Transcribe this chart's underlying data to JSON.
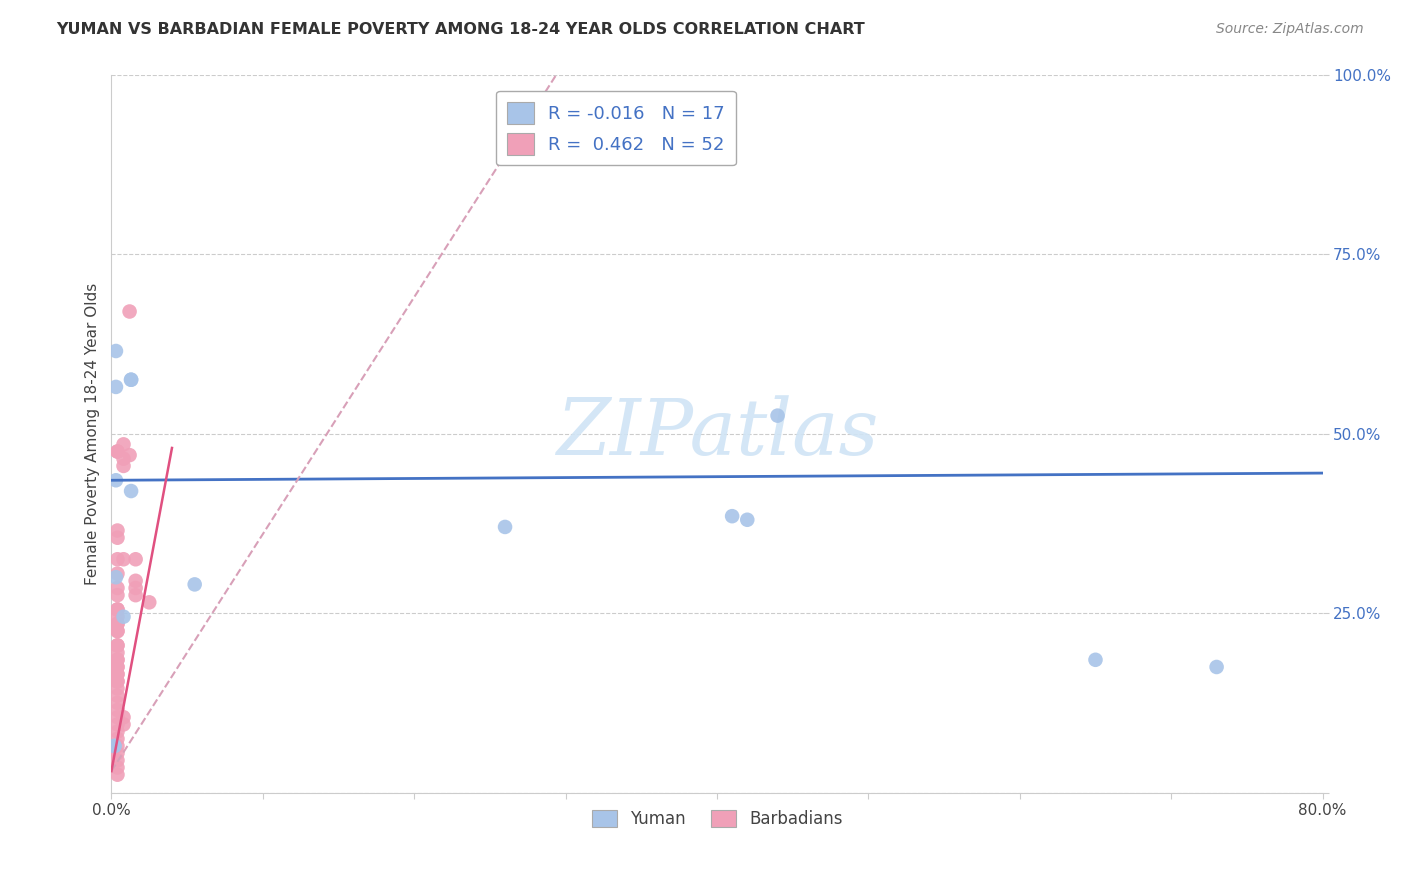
{
  "title": "YUMAN VS BARBADIAN FEMALE POVERTY AMONG 18-24 YEAR OLDS CORRELATION CHART",
  "source": "Source: ZipAtlas.com",
  "ylabel": "Female Poverty Among 18-24 Year Olds",
  "xlim": [
    0.0,
    0.8
  ],
  "ylim": [
    0.0,
    1.0
  ],
  "xticks": [
    0.0,
    0.1,
    0.2,
    0.3,
    0.4,
    0.5,
    0.6,
    0.7,
    0.8
  ],
  "xticklabels": [
    "0.0%",
    "",
    "",
    "",
    "",
    "",
    "",
    "",
    "80.0%"
  ],
  "yticks": [
    0.0,
    0.25,
    0.5,
    0.75,
    1.0
  ],
  "yticklabels": [
    "",
    "25.0%",
    "50.0%",
    "75.0%",
    "100.0%"
  ],
  "yuman_color": "#a8c4e8",
  "barbadian_color": "#f0a0b8",
  "yuman_R": -0.016,
  "yuman_N": 17,
  "barbadian_R": 0.462,
  "barbadian_N": 52,
  "background_color": "#ffffff",
  "grid_color": "#cccccc",
  "trend_yuman_color": "#4472c4",
  "trend_barbadian_color": "#e05080",
  "trend_barbadian_dash_color": "#d8a0b8",
  "watermark_color": "#d0e4f5",
  "yuman_x": [
    0.003,
    0.003,
    0.013,
    0.013,
    0.013,
    0.003,
    0.003,
    0.055,
    0.41,
    0.44,
    0.65,
    0.73,
    0.002,
    0.002,
    0.008,
    0.26,
    0.42
  ],
  "yuman_y": [
    0.615,
    0.565,
    0.575,
    0.575,
    0.42,
    0.435,
    0.3,
    0.29,
    0.385,
    0.525,
    0.185,
    0.175,
    0.065,
    0.065,
    0.245,
    0.37,
    0.38
  ],
  "barbadian_x": [
    0.012,
    0.012,
    0.004,
    0.004,
    0.004,
    0.004,
    0.004,
    0.004,
    0.004,
    0.004,
    0.004,
    0.004,
    0.004,
    0.004,
    0.004,
    0.004,
    0.004,
    0.004,
    0.004,
    0.004,
    0.004,
    0.004,
    0.004,
    0.004,
    0.004,
    0.004,
    0.004,
    0.004,
    0.004,
    0.004,
    0.004,
    0.004,
    0.004,
    0.004,
    0.004,
    0.004,
    0.004,
    0.004,
    0.004,
    0.004,
    0.004,
    0.008,
    0.008,
    0.008,
    0.008,
    0.016,
    0.016,
    0.016,
    0.016,
    0.025,
    0.008,
    0.008
  ],
  "barbadian_y": [
    0.67,
    0.47,
    0.475,
    0.475,
    0.365,
    0.355,
    0.325,
    0.305,
    0.285,
    0.275,
    0.255,
    0.245,
    0.235,
    0.225,
    0.205,
    0.195,
    0.185,
    0.175,
    0.165,
    0.155,
    0.145,
    0.135,
    0.125,
    0.115,
    0.105,
    0.095,
    0.085,
    0.075,
    0.065,
    0.055,
    0.045,
    0.035,
    0.025,
    0.155,
    0.165,
    0.175,
    0.185,
    0.205,
    0.225,
    0.235,
    0.255,
    0.485,
    0.465,
    0.455,
    0.325,
    0.325,
    0.295,
    0.285,
    0.275,
    0.265,
    0.105,
    0.095
  ],
  "trend_yuman_x0": 0.0,
  "trend_yuman_x1": 0.8,
  "trend_yuman_y0": 0.435,
  "trend_yuman_y1": 0.445,
  "trend_barb_solid_x0": 0.0,
  "trend_barb_solid_x1": 0.04,
  "trend_barb_solid_y0": 0.03,
  "trend_barb_solid_y1": 0.48,
  "trend_barb_dash_x0": 0.0,
  "trend_barb_dash_x1": 0.3,
  "trend_barb_dash_y0": 0.03,
  "trend_barb_dash_y1": 1.02
}
